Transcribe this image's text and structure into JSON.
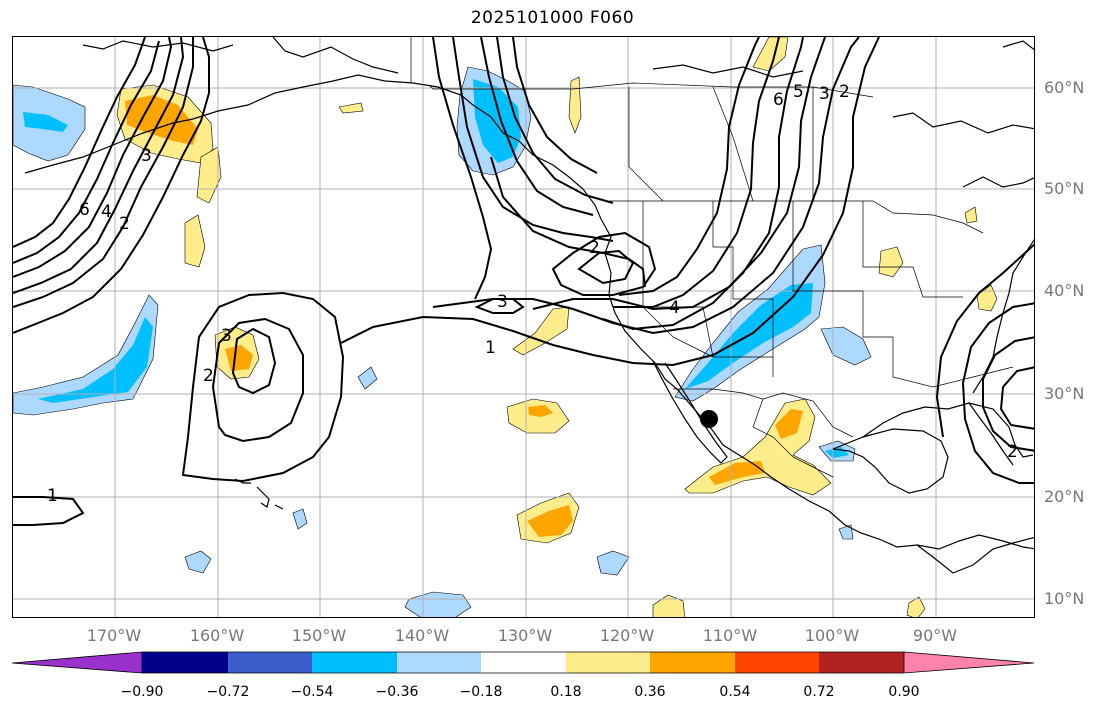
{
  "title": "2025101000 F060",
  "lat_labels": [
    "60°N",
    "50°N",
    "40°N",
    "30°N",
    "20°N",
    "10°N"
  ],
  "lon_labels": [
    "170°W",
    "160°W",
    "150°W",
    "140°W",
    "130°W",
    "120°W",
    "110°W",
    "100°W",
    "90°W"
  ],
  "contour_labels": [
    "6",
    "4",
    "2",
    "3",
    "3",
    "2",
    "1",
    "3",
    "2",
    "4",
    "6",
    "5",
    "3",
    "2",
    "1",
    "2"
  ],
  "colorbar": {
    "tick_labels": [
      "−0.90",
      "−0.72",
      "−0.54",
      "−0.36",
      "−0.18",
      "0.18",
      "0.36",
      "0.54",
      "0.72",
      "0.90"
    ],
    "colors": [
      "#9932cc",
      "#00008b",
      "#3a5fcd",
      "#00bfff",
      "#add8ff",
      "#ffffff",
      "#ffec8b",
      "#ffa500",
      "#ff4500",
      "#b22222",
      "#ff82ab"
    ]
  },
  "colors": {
    "grid": "#b0b0b0",
    "coast": "#000000",
    "contour": "#000000",
    "axis_label": "#777777"
  }
}
